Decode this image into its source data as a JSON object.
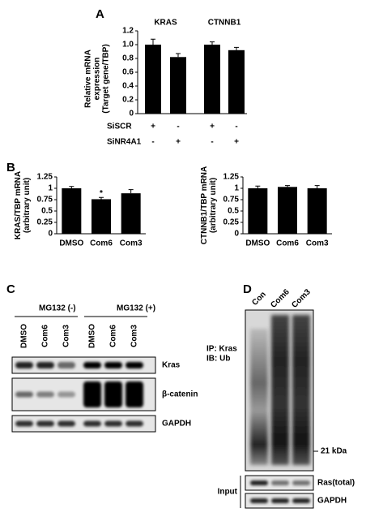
{
  "panel_labels": [
    "A",
    "B"
  ],
  "chart_data": [
    {
      "type": "bar",
      "groups": [
        "KRAS",
        "CTNNB1"
      ],
      "ylabel": [
        "Relative mRNA",
        "expression",
        "(Target gene/TBP)"
      ],
      "values": [
        1.0,
        0.82,
        1.0,
        0.92
      ],
      "errors": [
        0.08,
        0.05,
        0.04,
        0.04
      ],
      "color": "#000000",
      "ylim": [
        0,
        1.2
      ],
      "yticks": [
        0,
        0.2,
        0.4,
        0.6,
        0.8,
        {
          "value": 1,
          "label": "1.0"
        },
        1.2
      ],
      "conditions": [
        {
          "name": "SiSCR",
          "signs": [
            "+",
            "-",
            "+",
            "-"
          ]
        },
        {
          "name": "SiNR4A1",
          "signs": [
            "-",
            "+",
            "-",
            "+"
          ]
        }
      ]
    },
    {
      "type": "bar",
      "ylabel": [
        "KRAS/TBP mRNA",
        "(arbitrary unit)"
      ],
      "categories": [
        "DMSO",
        "Com6",
        "Com3"
      ],
      "values": [
        1.0,
        0.76,
        0.89
      ],
      "errors": [
        0.04,
        0.04,
        0.08
      ],
      "color": "#000000",
      "annotation": "*",
      "ylim": [
        0,
        1.25
      ],
      "yticks": [
        0,
        0.25,
        0.5,
        0.75,
        1,
        1.25
      ]
    },
    {
      "type": "bar",
      "ylabel": [
        "CTNNB1/TBP mRNA",
        "(arbitrary unit)"
      ],
      "categories": [
        "DMSO",
        "Com6",
        "Com3"
      ],
      "values": [
        1.0,
        1.03,
        1.0
      ],
      "errors": [
        0.05,
        0.03,
        0.06
      ],
      "color": "#000000",
      "ylim": [
        0,
        1.25
      ],
      "yticks": [
        0,
        0.25,
        0.5,
        0.75,
        1,
        1.25
      ]
    }
  ],
  "panel_c": {
    "label": "C",
    "groups": [
      "MG132 (-)",
      "MG132 (+)"
    ],
    "lanes": [
      "DMSO",
      "Com6",
      "Com3",
      "DMSO",
      "Com6",
      "Com3"
    ],
    "rows": [
      "Kras",
      "β-catenin",
      "GAPDH"
    ]
  },
  "panel_d": {
    "label": "D",
    "lanes": [
      "Con",
      "Com6",
      "Com3"
    ],
    "ip": "IP: Kras",
    "ib": "IB: Ub",
    "marker": "21 kDa",
    "input_rows": [
      "Ras(total)",
      "GAPDH"
    ],
    "input_label": "Input"
  }
}
